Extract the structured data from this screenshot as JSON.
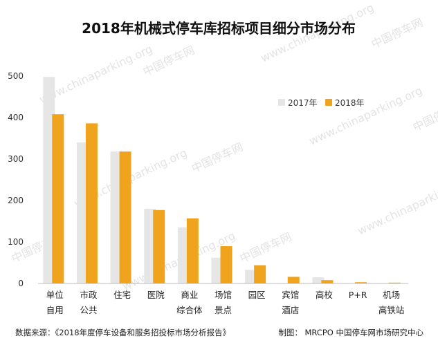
{
  "chart_data": {
    "type": "bar",
    "title": "2018年机械式停车库招标项目细分市场分布",
    "categories": [
      [
        "单位",
        "自用"
      ],
      [
        "市政",
        "公共"
      ],
      [
        "住宅"
      ],
      [
        "医院"
      ],
      [
        "商业",
        "综合体"
      ],
      [
        "场馆",
        "景点"
      ],
      [
        "园区"
      ],
      [
        "宾馆",
        "酒店"
      ],
      [
        "高校"
      ],
      [
        "P+R"
      ],
      [
        "机场",
        "高铁站"
      ]
    ],
    "series": [
      {
        "name": "2017年",
        "color": "#e6e6e6",
        "values": [
          498,
          340,
          318,
          180,
          135,
          62,
          33,
          0,
          15,
          0,
          0
        ]
      },
      {
        "name": "2018年",
        "color": "#f0a31c",
        "values": [
          408,
          386,
          318,
          177,
          157,
          90,
          44,
          16,
          8,
          3,
          2
        ]
      }
    ],
    "ylim": [
      0,
      500
    ],
    "yticks": [
      0,
      100,
      200,
      300,
      400,
      500
    ],
    "grid": false,
    "legend_position": "top-right"
  },
  "footer": {
    "source": "数据来源：《2018年度停车设备和服务招投标市场分析报告》",
    "credit": "制图： MRCPO 中国停车网市场研究中心"
  },
  "watermark": {
    "text1": "www.chinaparking.org",
    "text2": "中国停车网"
  }
}
